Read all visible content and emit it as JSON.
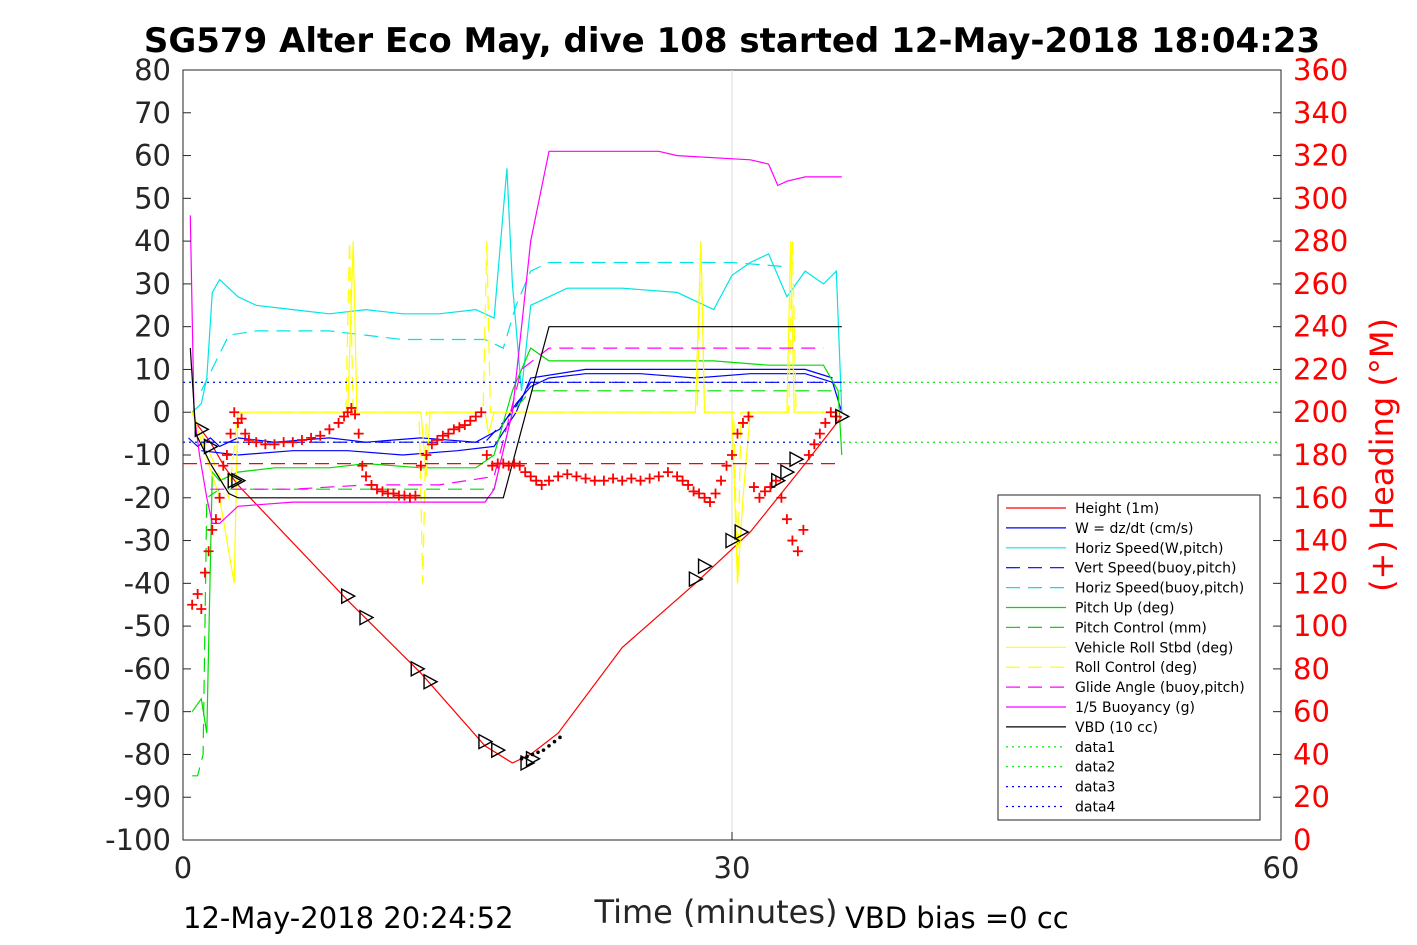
{
  "chart_data": {
    "type": "line",
    "title": "SG579 Alter Eco May, dive 108 started 12-May-2018 18:04:23",
    "xlabel": "Time (minutes)",
    "ylabel_right": "(+) Heading (°M)",
    "xlim": [
      0,
      60
    ],
    "ylim": [
      -100,
      80
    ],
    "ylim_right": [
      0,
      360
    ],
    "x_ticks": [
      "0",
      "30",
      "60"
    ],
    "y_ticks": [
      "80",
      "70",
      "60",
      "50",
      "40",
      "30",
      "20",
      "10",
      "0",
      "-10",
      "-20",
      "-30",
      "-40",
      "-50",
      "-60",
      "-70",
      "-80",
      "-90",
      "-100"
    ],
    "y_ticks_right": [
      "360",
      "340",
      "320",
      "300",
      "280",
      "260",
      "240",
      "220",
      "200",
      "180",
      "160",
      "140",
      "120",
      "100",
      "80",
      "60",
      "40",
      "20",
      "0"
    ],
    "footer_left": "12-May-2018 20:24:52",
    "footer_right": "VBD bias =0 cc",
    "grid": "x-only at 30",
    "legend_position": "lower-right",
    "colors": {
      "red": "#ff0000",
      "blue": "#0000ff",
      "cyan": "#00ffff",
      "green": "#00ff00",
      "yellow": "#ffff00",
      "magenta": "#ff00ff",
      "black": "#000000",
      "darkblue": "#0000cc"
    },
    "legend": [
      {
        "label": "Height (1m)",
        "color": "#ff0000",
        "dash": "solid"
      },
      {
        "label": "W = dz/dt (cm/s)",
        "color": "#0000ff",
        "dash": "solid"
      },
      {
        "label": "Horiz Speed(W,pitch)",
        "color": "#00e5e5",
        "dash": "solid"
      },
      {
        "label": "Vert Speed(buoy,pitch)",
        "color": "#0000ff",
        "dash": "dashed"
      },
      {
        "label": "Horiz Speed(buoy,pitch)",
        "color": "#00e5e5",
        "dash": "dashed"
      },
      {
        "label": "Pitch Up (deg)",
        "color": "#00dd00",
        "dash": "solid"
      },
      {
        "label": "Pitch Control (mm)",
        "color": "#00dd00",
        "dash": "dashed"
      },
      {
        "label": "Vehicle Roll Stbd (deg)",
        "color": "#ffff00",
        "dash": "solid"
      },
      {
        "label": "Roll Control (deg)",
        "color": "#ffff00",
        "dash": "dashed"
      },
      {
        "label": "Glide Angle (buoy,pitch)",
        "color": "#ff00ff",
        "dash": "dashed"
      },
      {
        "label": "1/5 Buoyancy (g)",
        "color": "#ff00ff",
        "dash": "solid"
      },
      {
        "label": "VBD (10 cc)",
        "color": "#000000",
        "dash": "solid"
      },
      {
        "label": "data1",
        "color": "#00dd00",
        "dash": "dotted"
      },
      {
        "label": "data2",
        "color": "#00dd00",
        "dash": "dotted"
      },
      {
        "label": "data3",
        "color": "#0000ff",
        "dash": "dotted"
      },
      {
        "label": "data4",
        "color": "#0000ff",
        "dash": "dotted"
      }
    ],
    "series": [
      {
        "name": "Height (1m)",
        "color": "#ff0000",
        "dash": "solid",
        "x": [
          0.8,
          1.5,
          2.3,
          3.0,
          9.0,
          13.0,
          16.5,
          18.0,
          19.0,
          20.5,
          24.0,
          28.0,
          31.0,
          34.0,
          36.0
        ],
        "y": [
          -3,
          -7,
          -13,
          -17,
          -44,
          -61,
          -78,
          -82,
          -80,
          -75,
          -55,
          -40,
          -28,
          -12,
          -1
        ]
      },
      {
        "name": "W = dz/dt (cm/s)",
        "color": "#0000ff",
        "dash": "solid",
        "x": [
          0.3,
          0.8,
          1.5,
          2.0,
          3.0,
          5.0,
          8.0,
          10.0,
          13.0,
          16.0,
          17.3,
          18.2,
          19.0,
          20.0,
          22.0,
          25.0,
          28.0,
          31.0,
          34.0,
          35.5,
          36.0
        ],
        "y": [
          -6,
          -8,
          -6,
          -8,
          -6,
          -7,
          -6,
          -7,
          -6,
          -7,
          -4,
          2,
          6,
          8,
          9,
          9,
          8,
          9,
          9,
          7,
          0
        ]
      },
      {
        "name": "W = dz/dt (cm/s)",
        "color": "#0000ff",
        "dash": "solid",
        "x": [
          1.0,
          3.0,
          6.0,
          9.0,
          12.0,
          15.0,
          17.0,
          18.2,
          19.0,
          22.0,
          26.0,
          30.0,
          34.0,
          35.5
        ],
        "y": [
          -9,
          -10,
          -9,
          -9,
          -10,
          -9,
          -8,
          0,
          8,
          10,
          10,
          10,
          10,
          8
        ]
      },
      {
        "name": "Horiz Speed(W,pitch)",
        "color": "#00e5e5",
        "dash": "solid",
        "x": [
          0.5,
          1.0,
          1.3,
          1.6,
          2.0,
          2.5,
          3.0,
          4.0,
          6.0,
          8.0,
          10.0,
          12.0,
          14.0,
          16.0,
          17.0,
          17.7,
          18.0,
          18.5,
          19.0,
          21.0,
          24.0,
          27.0,
          29.0,
          30.0,
          31.0,
          32.0,
          33.0,
          34.0,
          35.0,
          35.7,
          36.0
        ],
        "y": [
          0,
          2,
          8,
          28,
          31,
          29,
          27,
          25,
          24,
          23,
          24,
          23,
          23,
          24,
          22,
          57,
          30,
          5,
          25,
          29,
          29,
          28,
          24,
          32,
          35,
          37,
          27,
          33,
          30,
          33,
          0
        ]
      },
      {
        "name": "Vert Speed(buoy,pitch)",
        "color": "#0000ff",
        "dash": "dashed",
        "x": [
          1.0,
          4.0,
          8.0,
          12.0,
          16.5,
          18.0,
          19.0,
          24.0,
          30.0,
          36.0
        ],
        "y": [
          -7,
          -7,
          -7,
          -7,
          -7,
          0,
          7,
          7,
          7,
          7
        ]
      },
      {
        "name": "Horiz Speed(buoy,pitch)",
        "color": "#00e5e5",
        "dash": "dashed",
        "x": [
          1.0,
          2.5,
          4.0,
          8.0,
          12.0,
          16.5,
          17.5,
          18.2,
          19.0,
          20.0,
          24.0,
          30.0,
          33.0
        ],
        "y": [
          5,
          18,
          19,
          19,
          17,
          17,
          15,
          25,
          33,
          35,
          35,
          35,
          34
        ]
      },
      {
        "name": "Pitch Up (deg)",
        "color": "#00dd00",
        "dash": "solid",
        "x": [
          0.5,
          1.0,
          1.3,
          1.6,
          2.0,
          3.0,
          5.0,
          8.0,
          10.0,
          13.0,
          16.0,
          17.0,
          18.0,
          19.0,
          20.0,
          23.0,
          26.0,
          29.0,
          32.0,
          35.0,
          35.8,
          36.0
        ],
        "y": [
          -70,
          -67,
          -75,
          -14,
          -16,
          -14,
          -13,
          -13,
          -12,
          -13,
          -13,
          -10,
          5,
          15,
          12,
          12,
          12,
          12,
          11,
          11,
          5,
          -10
        ]
      },
      {
        "name": "Pitch Control (mm)",
        "color": "#00dd00",
        "dash": "dashed",
        "x": [
          0.5,
          0.8,
          1.1,
          1.3,
          2.0,
          6.0,
          10.0,
          14.0,
          17.0,
          18.0,
          19.0,
          22.0,
          26.0,
          30.0,
          35.0,
          36.0
        ],
        "y": [
          -85,
          -85,
          -80,
          -20,
          -18,
          -18,
          -18,
          -18,
          -18,
          0,
          5,
          5,
          5,
          5,
          5,
          5
        ]
      },
      {
        "name": "Vehicle Roll Stbd (deg)",
        "color": "#ffff00",
        "dash": "solid",
        "x": [
          0.5,
          2.0,
          2.8,
          3.0,
          9.0,
          9.3,
          9.5,
          10.0,
          13.0,
          13.3,
          13.5,
          16.5,
          16.7,
          17.0,
          18.0,
          19.0,
          28.0,
          28.3,
          28.5,
          30.0,
          30.3,
          30.6,
          31.0,
          33.0,
          33.2,
          33.4,
          36.0
        ],
        "y": [
          0,
          -20,
          -40,
          0,
          0,
          40,
          0,
          0,
          0,
          -15,
          0,
          0,
          -5,
          0,
          0,
          0,
          0,
          40,
          0,
          0,
          -40,
          -20,
          0,
          0,
          40,
          0,
          0
        ]
      },
      {
        "name": "Roll Control (deg)",
        "color": "#ffff00",
        "dash": "dashed",
        "x": [
          0.5,
          2.5,
          3.0,
          8.9,
          9.1,
          9.3,
          12.9,
          13.1,
          13.3,
          16.4,
          16.6,
          16.8,
          28.1,
          28.3,
          28.5,
          30.1,
          30.3,
          30.5,
          33.1,
          33.3,
          33.5,
          36.0
        ],
        "y": [
          0,
          -20,
          0,
          0,
          40,
          0,
          0,
          -40,
          0,
          0,
          40,
          0,
          0,
          40,
          0,
          0,
          -40,
          0,
          0,
          40,
          0,
          0
        ]
      },
      {
        "name": "Glide Angle (buoy,pitch)",
        "color": "#ff00ff",
        "dash": "dashed",
        "x": [
          1.5,
          3.0,
          6.0,
          10.0,
          14.0,
          17.0,
          18.5,
          20.0,
          24.0,
          30.0,
          35.0
        ],
        "y": [
          -18,
          -18,
          -18,
          -17,
          -17,
          -15,
          10,
          15,
          15,
          15,
          15
        ]
      },
      {
        "name": "1/5 Buoyancy (g)",
        "color": "#ff00ff",
        "dash": "solid",
        "x": [
          0.4,
          0.6,
          0.9,
          1.3,
          1.6,
          2.0,
          3.0,
          6.0,
          10.0,
          14.0,
          16.5,
          17.0,
          18.0,
          19.0,
          20.0,
          22.0,
          26.0,
          27.0,
          31.0,
          32.0,
          32.5,
          33.0,
          34.0,
          36.0
        ],
        "y": [
          46,
          0,
          -10,
          -20,
          -26,
          -26,
          -22,
          -21,
          -21,
          -21,
          -21,
          -18,
          0,
          40,
          61,
          61,
          61,
          60,
          59,
          58,
          53,
          54,
          55,
          55
        ]
      },
      {
        "name": "VBD (10 cc)",
        "color": "#000000",
        "dash": "solid",
        "x": [
          0.4,
          0.7,
          1.5,
          2.5,
          3.0,
          10.0,
          17.5,
          20.0,
          30.0,
          36.0
        ],
        "y": [
          15,
          -5,
          -12,
          -19,
          -20,
          -20,
          -20,
          20,
          20,
          20
        ]
      },
      {
        "name": "data1",
        "color": "#00dd00",
        "dash": "dotted",
        "x": [
          0.0,
          60.0
        ],
        "y": [
          7,
          7
        ]
      },
      {
        "name": "data2",
        "color": "#00dd00",
        "dash": "dotted",
        "x": [
          0.0,
          60.0
        ],
        "y": [
          -7,
          -7
        ]
      },
      {
        "name": "data3",
        "color": "#0000ff",
        "dash": "dotted",
        "x": [
          0.0,
          36.0
        ],
        "y": [
          7,
          7
        ]
      },
      {
        "name": "data4",
        "color": "#0000ff",
        "dash": "dotted",
        "x": [
          0.0,
          36.0
        ],
        "y": [
          -7,
          -7
        ]
      },
      {
        "name": "",
        "color": "#ff0000",
        "dash": "dashed",
        "x": [
          0.0,
          36.0
        ],
        "y": [
          -12,
          -12
        ]
      }
    ],
    "heading_points": {
      "color": "#ff0000",
      "marker": "+",
      "axis": "right",
      "x": [
        0.5,
        0.8,
        1.0,
        1.2,
        1.4,
        1.6,
        1.8,
        2.0,
        2.2,
        2.4,
        2.6,
        2.8,
        3.0,
        3.2,
        3.4,
        3.6,
        4.0,
        4.5,
        5.0,
        5.5,
        6.0,
        6.5,
        7.0,
        7.5,
        8.0,
        8.5,
        8.8,
        9.0,
        9.2,
        9.4,
        9.6,
        9.8,
        10.0,
        10.3,
        10.6,
        10.9,
        11.2,
        11.5,
        11.8,
        12.1,
        12.4,
        12.7,
        13.0,
        13.3,
        13.6,
        13.9,
        14.2,
        14.5,
        14.8,
        15.1,
        15.4,
        15.7,
        16.0,
        16.3,
        16.6,
        16.9,
        17.2,
        17.5,
        17.8,
        18.1,
        18.4,
        18.7,
        19.0,
        19.3,
        19.6,
        20.0,
        20.5,
        21.0,
        21.5,
        22.0,
        22.5,
        23.0,
        23.5,
        24.0,
        24.5,
        25.0,
        25.5,
        26.0,
        26.5,
        27.0,
        27.3,
        27.6,
        27.9,
        28.2,
        28.5,
        28.8,
        29.1,
        29.4,
        29.7,
        30.0,
        30.3,
        30.6,
        30.9,
        31.2,
        31.5,
        31.8,
        32.1,
        32.4,
        32.7,
        33.0,
        33.3,
        33.6,
        33.9,
        34.2,
        34.5,
        34.8,
        35.1,
        35.4,
        35.7
      ],
      "y": [
        110,
        115,
        108,
        125,
        135,
        145,
        150,
        160,
        175,
        180,
        190,
        200,
        195,
        197,
        190,
        187,
        186,
        185,
        185,
        186,
        186,
        187,
        188,
        189,
        192,
        195,
        198,
        200,
        202,
        199,
        190,
        175,
        170,
        166,
        164,
        163,
        162,
        162,
        161,
        161,
        160,
        161,
        175,
        180,
        185,
        187,
        189,
        190,
        192,
        193,
        194,
        196,
        198,
        200,
        180,
        175,
        176,
        176,
        175,
        176,
        175,
        172,
        170,
        168,
        166,
        168,
        170,
        171,
        170,
        169,
        168,
        168,
        169,
        168,
        169,
        168,
        169,
        170,
        172,
        170,
        168,
        166,
        163,
        162,
        160,
        158,
        162,
        168,
        175,
        180,
        190,
        195,
        198,
        165,
        160,
        163,
        165,
        168,
        160,
        150,
        140,
        135,
        145,
        180,
        185,
        190,
        195,
        200,
        198
      ]
    },
    "triangle_markers": {
      "color": "#000000",
      "x": [
        1.0,
        1.5,
        2.8,
        3.0,
        9.0,
        10.0,
        12.8,
        13.5,
        16.5,
        17.2,
        18.8,
        19.1,
        28.0,
        28.5,
        30.0,
        30.5,
        32.5,
        33.0,
        33.5,
        36.0
      ],
      "y": [
        -4,
        -8,
        -16,
        -16,
        -43,
        -48,
        -60,
        -63,
        -77,
        -79,
        -82,
        -81,
        -39,
        -36,
        -30,
        -28,
        -16,
        -14,
        -11,
        -1
      ]
    },
    "ascent_dots": {
      "color": "#000000",
      "x": [
        18.5,
        18.8,
        19.1,
        19.4,
        19.7,
        20.0,
        20.3,
        20.6
      ],
      "y": [
        -81,
        -80.5,
        -80,
        -79.5,
        -79,
        -78,
        -77,
        -76
      ]
    }
  }
}
